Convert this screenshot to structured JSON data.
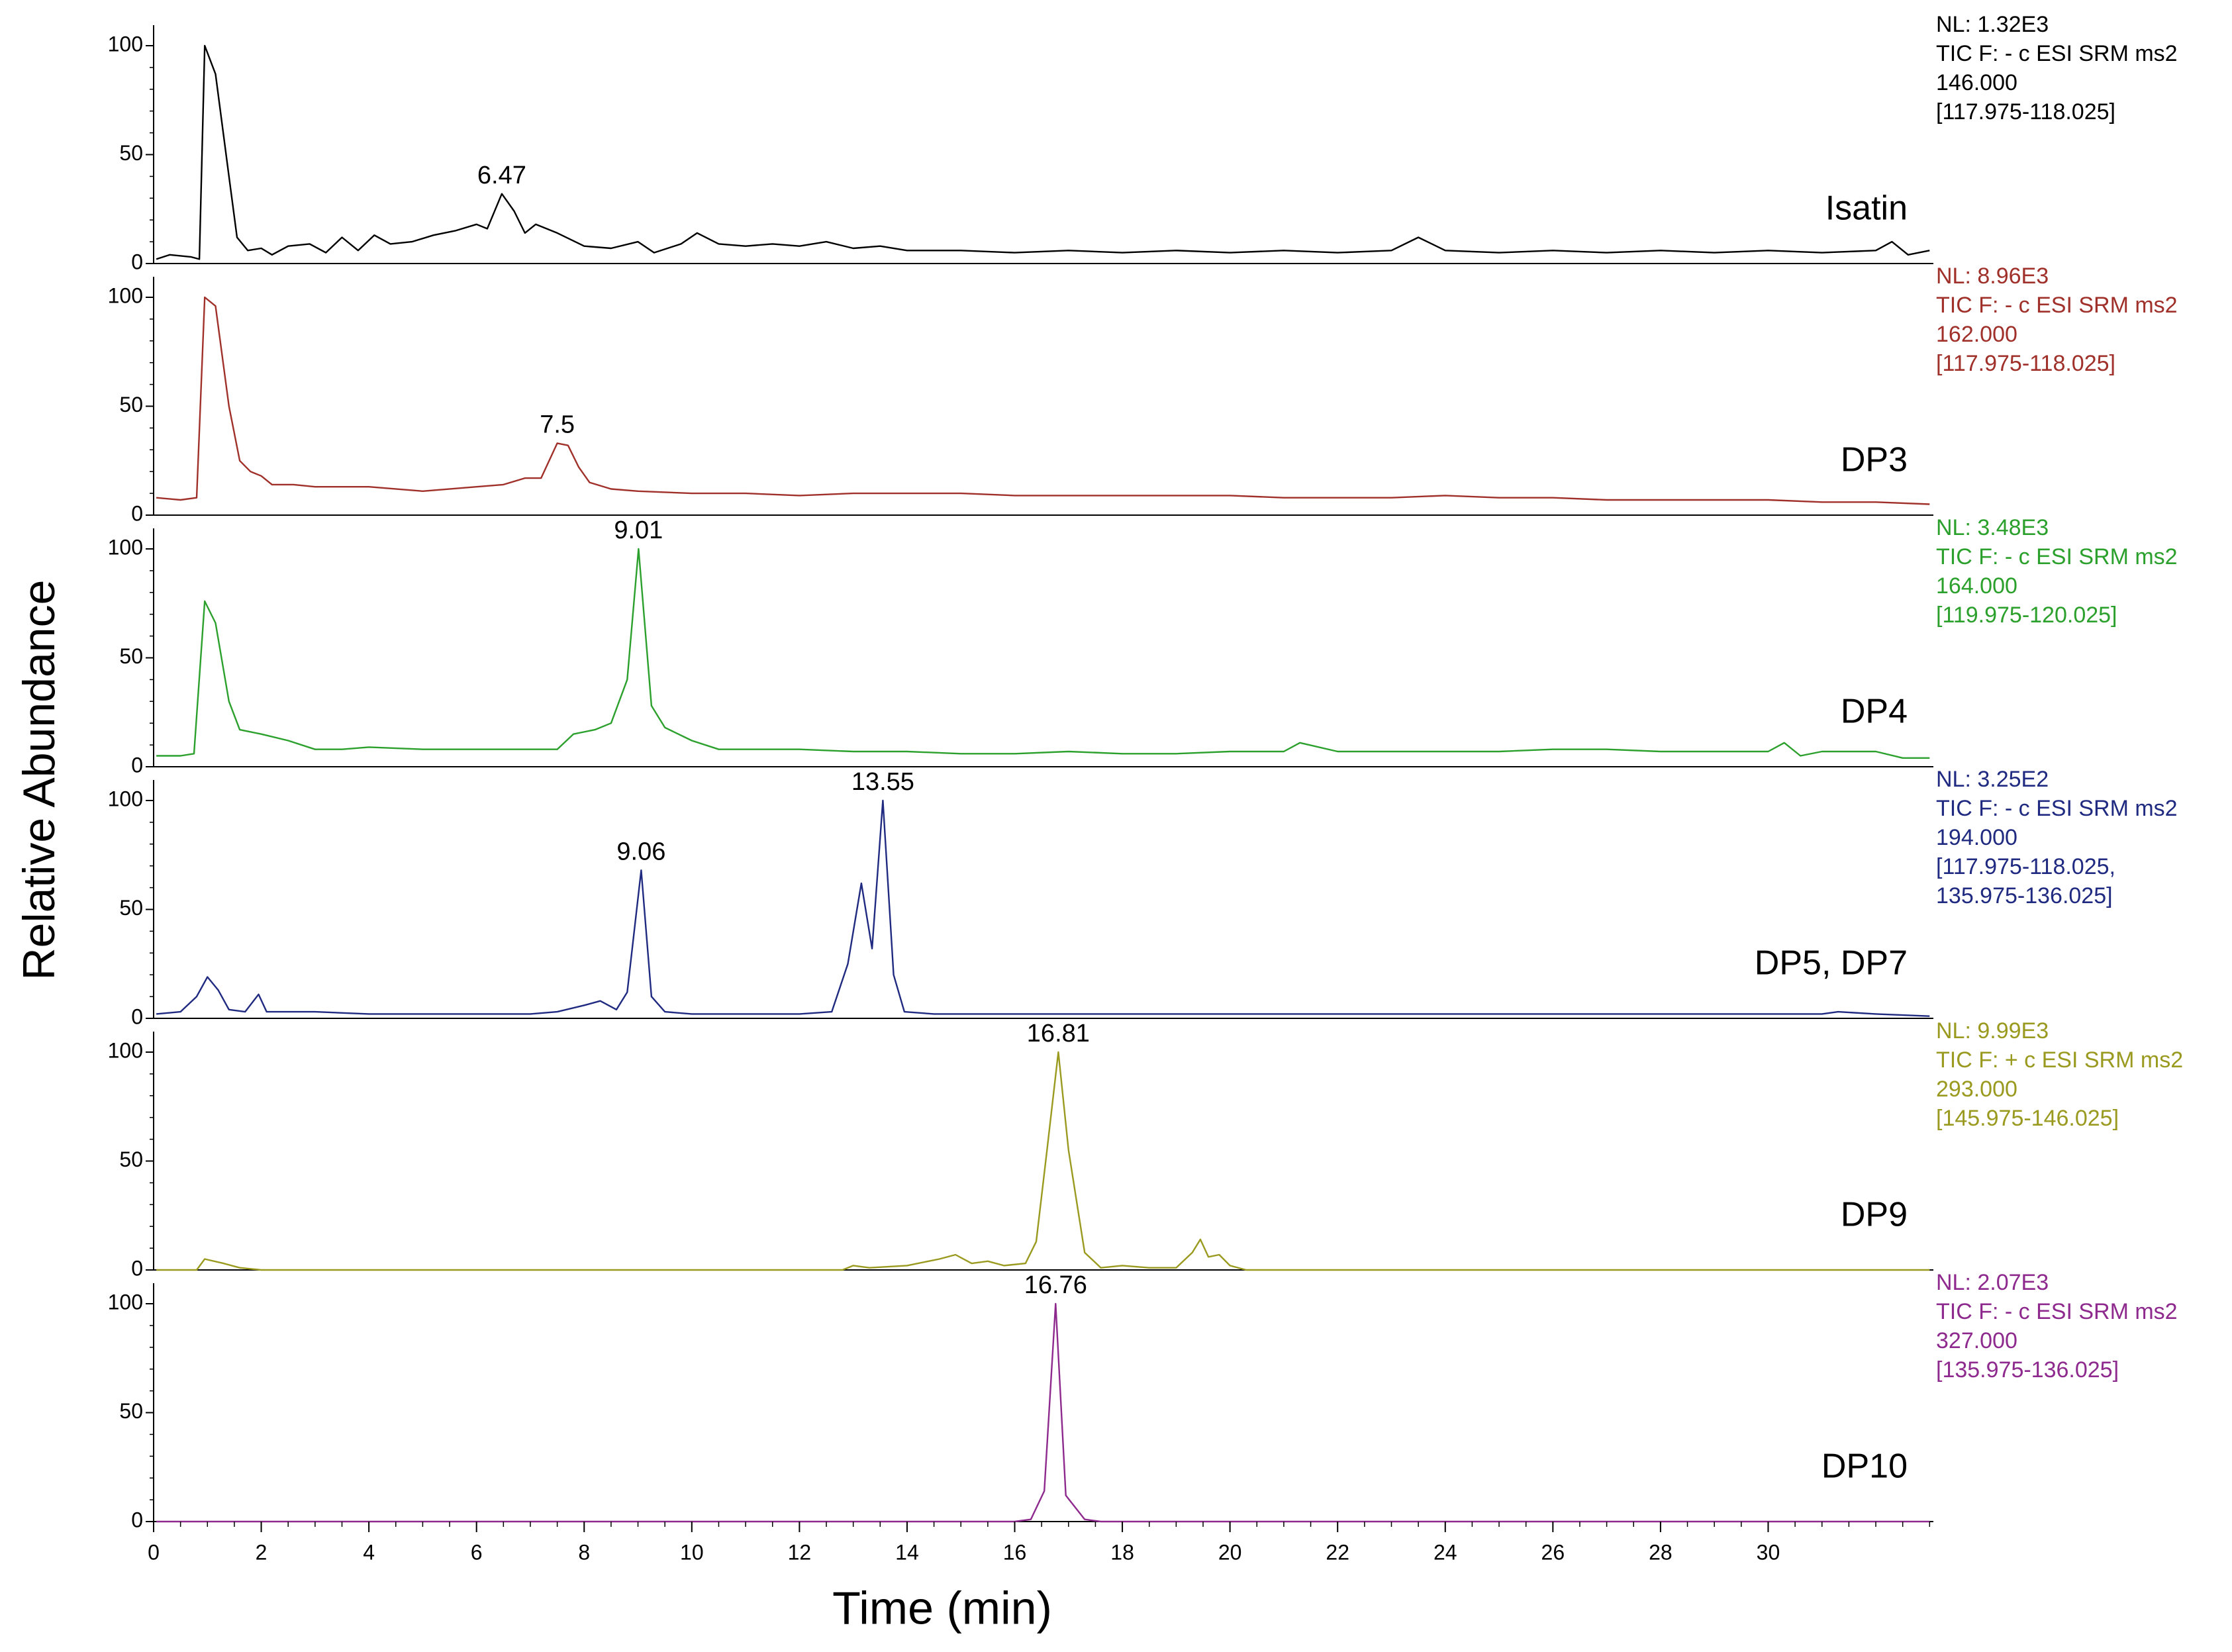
{
  "chart_data": [
    {
      "type": "line",
      "name": "Isatin",
      "color": "#000000",
      "ylabel": "Relative Abundance",
      "info": [
        "NL: 1.32E3",
        "TIC F: - c ESI SRM ms2",
        "146.000",
        "[117.975-118.025]"
      ],
      "peak_labels": [
        6.47
      ],
      "xlim": [
        0,
        33.07
      ],
      "ylim": [
        0,
        100
      ],
      "yticks": [
        0,
        50,
        100
      ],
      "x": [
        0.05,
        0.3,
        0.7,
        0.85,
        0.95,
        1.15,
        1.4,
        1.55,
        1.75,
        2.0,
        2.2,
        2.5,
        2.9,
        3.2,
        3.5,
        3.8,
        4.1,
        4.4,
        4.8,
        5.2,
        5.6,
        6.0,
        6.2,
        6.47,
        6.7,
        6.9,
        7.1,
        7.5,
        8.0,
        8.5,
        9.0,
        9.3,
        9.8,
        10.1,
        10.5,
        11,
        11.5,
        12,
        12.5,
        13,
        13.5,
        14,
        15,
        16,
        17,
        18,
        19,
        20,
        21,
        22,
        23,
        23.5,
        24,
        25,
        26,
        27,
        28,
        29,
        30,
        31,
        32,
        32.3,
        32.6,
        33
      ],
      "values": [
        2,
        4,
        3,
        2,
        100,
        87,
        40,
        12,
        6,
        7,
        4,
        8,
        9,
        5,
        12,
        6,
        13,
        9,
        10,
        13,
        15,
        18,
        16,
        32,
        24,
        14,
        18,
        14,
        8,
        7,
        10,
        5,
        9,
        14,
        9,
        8,
        9,
        8,
        10,
        7,
        8,
        6,
        6,
        5,
        6,
        5,
        6,
        5,
        6,
        5,
        6,
        12,
        6,
        5,
        6,
        5,
        6,
        5,
        6,
        5,
        6,
        10,
        4,
        6
      ]
    },
    {
      "type": "line",
      "name": "DP3",
      "color": "#a0302a",
      "info": [
        "NL: 8.96E3",
        "TIC F: - c ESI SRM ms2",
        "162.000",
        "[117.975-118.025]"
      ],
      "peak_labels": [
        7.5
      ],
      "xlim": [
        0,
        33.07
      ],
      "ylim": [
        0,
        100
      ],
      "yticks": [
        0,
        50,
        100
      ],
      "x": [
        0.05,
        0.5,
        0.8,
        0.95,
        1.15,
        1.4,
        1.6,
        1.8,
        2.0,
        2.2,
        2.6,
        3,
        4,
        5,
        6,
        6.5,
        6.9,
        7.2,
        7.5,
        7.7,
        7.9,
        8.1,
        8.5,
        9,
        10,
        11,
        12,
        13,
        14,
        15,
        16,
        17,
        18,
        19,
        20,
        21,
        22,
        23,
        24,
        25,
        26,
        27,
        28,
        29,
        30,
        31,
        32,
        33
      ],
      "values": [
        8,
        7,
        8,
        100,
        96,
        50,
        25,
        20,
        18,
        14,
        14,
        13,
        13,
        11,
        13,
        14,
        17,
        17,
        33,
        32,
        22,
        15,
        12,
        11,
        10,
        10,
        9,
        10,
        10,
        10,
        9,
        9,
        9,
        9,
        9,
        8,
        8,
        8,
        9,
        8,
        8,
        7,
        7,
        7,
        7,
        6,
        6,
        5
      ]
    },
    {
      "type": "line",
      "name": "DP4",
      "color": "#2ca02c",
      "info": [
        "NL: 3.48E3",
        "TIC F: - c ESI SRM ms2",
        "164.000",
        "[119.975-120.025]"
      ],
      "peak_labels": [
        9.01
      ],
      "xlim": [
        0,
        33.07
      ],
      "ylim": [
        0,
        100
      ],
      "yticks": [
        0,
        50,
        100
      ],
      "x": [
        0.05,
        0.5,
        0.75,
        0.95,
        1.15,
        1.4,
        1.6,
        2.0,
        2.5,
        3,
        3.5,
        4,
        5,
        6,
        7,
        7.5,
        7.8,
        8.2,
        8.5,
        8.8,
        9.01,
        9.25,
        9.5,
        10,
        10.5,
        11,
        12,
        13,
        14,
        15,
        16,
        17,
        18,
        19,
        20,
        21,
        21.3,
        22,
        23,
        24,
        25,
        26,
        27,
        28,
        29,
        30,
        30.3,
        30.6,
        31,
        32,
        32.5,
        33
      ],
      "values": [
        5,
        5,
        6,
        76,
        66,
        30,
        17,
        15,
        12,
        8,
        8,
        9,
        8,
        8,
        8,
        8,
        15,
        17,
        20,
        40,
        100,
        28,
        18,
        12,
        8,
        8,
        8,
        7,
        7,
        6,
        6,
        7,
        6,
        6,
        7,
        7,
        11,
        7,
        7,
        7,
        7,
        8,
        8,
        7,
        7,
        7,
        11,
        5,
        7,
        7,
        4,
        4
      ]
    },
    {
      "type": "line",
      "name": "DP5, DP7",
      "color": "#1f2a80",
      "info": [
        "NL: 3.25E2",
        "TIC F: - c ESI SRM ms2",
        "194.000",
        "[117.975-118.025,",
        "135.975-136.025]"
      ],
      "peak_labels": [
        9.06,
        13.55
      ],
      "xlim": [
        0,
        33.07
      ],
      "ylim": [
        0,
        100
      ],
      "yticks": [
        0,
        50,
        100
      ],
      "x": [
        0.05,
        0.5,
        0.8,
        1.0,
        1.2,
        1.4,
        1.7,
        1.95,
        2.1,
        3,
        4,
        5,
        6,
        7,
        7.5,
        8.0,
        8.3,
        8.6,
        8.8,
        9.06,
        9.25,
        9.5,
        10,
        11,
        12,
        12.6,
        12.9,
        13.15,
        13.35,
        13.55,
        13.75,
        13.95,
        14.5,
        15,
        16,
        17,
        18,
        19,
        20,
        21,
        22,
        23,
        24,
        25,
        26,
        27,
        28,
        29,
        30,
        31,
        31.3,
        32,
        33
      ],
      "values": [
        2,
        3,
        10,
        19,
        13,
        4,
        3,
        11,
        3,
        3,
        2,
        2,
        2,
        2,
        3,
        6,
        8,
        4,
        12,
        68,
        10,
        3,
        2,
        2,
        2,
        3,
        25,
        62,
        32,
        100,
        20,
        3,
        2,
        2,
        2,
        2,
        2,
        2,
        2,
        2,
        2,
        2,
        2,
        2,
        2,
        2,
        2,
        2,
        2,
        2,
        3,
        2,
        1
      ]
    },
    {
      "type": "line",
      "name": "DP9",
      "color": "#9a9a20",
      "info": [
        "NL: 9.99E3",
        "TIC F: + c ESI SRM ms2",
        "293.000",
        "[145.975-146.025]"
      ],
      "peak_labels": [
        16.81
      ],
      "xlim": [
        0,
        33.07
      ],
      "ylim": [
        0,
        100
      ],
      "yticks": [
        0,
        50,
        100
      ],
      "x": [
        0.05,
        0.8,
        0.95,
        1.3,
        1.6,
        2,
        5,
        10,
        12.8,
        13,
        13.3,
        14,
        14.6,
        14.9,
        15.2,
        15.5,
        15.8,
        16.2,
        16.4,
        16.6,
        16.81,
        17.0,
        17.3,
        17.6,
        18,
        18.5,
        19,
        19.3,
        19.45,
        19.6,
        19.8,
        20.0,
        20.3,
        25,
        33
      ],
      "values": [
        0,
        0,
        5,
        3,
        1,
        0,
        0,
        0,
        0,
        2,
        1,
        2,
        5,
        7,
        3,
        4,
        2,
        3,
        13,
        55,
        100,
        55,
        8,
        1,
        2,
        1,
        1,
        8,
        14,
        6,
        7,
        2,
        0,
        0,
        0
      ]
    },
    {
      "type": "line",
      "name": "DP10",
      "color": "#8e2a8e",
      "info": [
        "NL: 2.07E3",
        "TIC F: - c ESI SRM ms2",
        "327.000",
        "[135.975-136.025]"
      ],
      "peak_labels": [
        16.76
      ],
      "xlabel": "Time (min)",
      "xlim": [
        0,
        33.07
      ],
      "ylim": [
        0,
        100
      ],
      "yticks": [
        0,
        50,
        100
      ],
      "xticks": [
        0,
        2,
        4,
        6,
        8,
        10,
        12,
        14,
        16,
        18,
        20,
        22,
        24,
        26,
        28,
        30
      ],
      "x": [
        0.05,
        16,
        16.3,
        16.55,
        16.76,
        16.95,
        17.3,
        17.6,
        33
      ],
      "values": [
        0,
        0,
        1,
        14,
        100,
        12,
        1,
        0,
        0
      ]
    }
  ]
}
